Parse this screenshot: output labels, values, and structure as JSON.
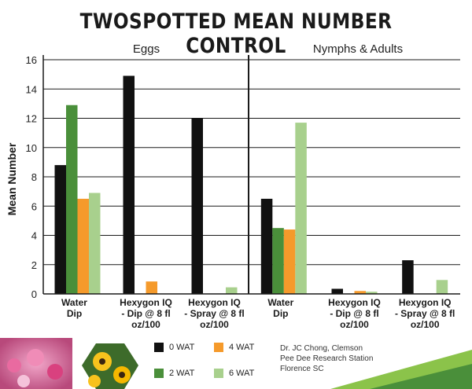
{
  "title": "TWOSPOTTED MEAN NUMBER CONTROL",
  "panels": [
    "Eggs",
    "Nymphs & Adults"
  ],
  "legend": [
    {
      "name": "0 WAT",
      "color": "#111111"
    },
    {
      "name": "4 WAT",
      "color": "#f59a2b"
    },
    {
      "name": "2 WAT",
      "color": "#4a8f3a"
    },
    {
      "name": "6 WAT",
      "color": "#a8d08d"
    }
  ],
  "credit": [
    "Dr. JC Chong, Clemson",
    "Pee Dee Research Station",
    "Florence SC"
  ],
  "chart_data": {
    "type": "bar",
    "title": "TWOSPOTTED MEAN NUMBER CONTROL",
    "ylabel": "Mean Number",
    "xlabel": "",
    "ylim": [
      0,
      16
    ],
    "yticks": [
      0,
      2,
      4,
      6,
      8,
      10,
      12,
      14,
      16
    ],
    "grid": true,
    "panels": [
      "Eggs",
      "Nymphs & Adults"
    ],
    "categories": [
      [
        "Water",
        "Dip"
      ],
      [
        "Hexygon IQ",
        "- Dip @ 8 fl",
        "oz/100"
      ],
      [
        "Hexygon IQ",
        "- Spray @ 8 fl",
        "oz/100"
      ],
      [
        "Water",
        "Dip"
      ],
      [
        "Hexygon IQ",
        "- Dip @ 8 fl",
        "oz/100"
      ],
      [
        "Hexygon IQ",
        "- Spray @ 8 fl",
        "oz/100"
      ]
    ],
    "series": [
      {
        "name": "0 WAT",
        "color": "#111111",
        "values": [
          8.8,
          14.9,
          12.0,
          6.5,
          0.35,
          2.3
        ]
      },
      {
        "name": "2 WAT",
        "color": "#4a8f3a",
        "values": [
          12.9,
          0,
          0,
          4.5,
          0,
          0
        ]
      },
      {
        "name": "4 WAT",
        "color": "#f59a2b",
        "values": [
          6.5,
          0.85,
          0,
          4.4,
          0.2,
          0
        ]
      },
      {
        "name": "6 WAT",
        "color": "#a8d08d",
        "values": [
          6.9,
          0,
          0.45,
          11.7,
          0.15,
          0.95
        ]
      }
    ],
    "legend_position": "bottom"
  }
}
